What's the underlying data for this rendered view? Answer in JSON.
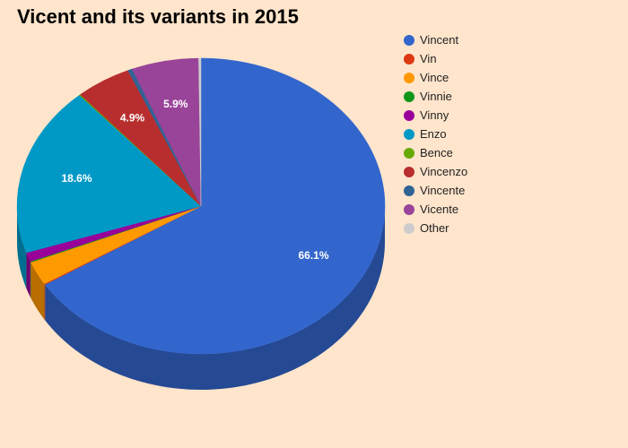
{
  "chart_data": {
    "type": "pie",
    "title": "Vicent and its variants in 2015",
    "slices": [
      {
        "label": "Vincent",
        "value": 66.1,
        "color": "#3366cc",
        "data_label": "66.1%"
      },
      {
        "label": "Vin",
        "value": 0.1,
        "color": "#dc3912",
        "data_label": ""
      },
      {
        "label": "Vince",
        "value": 2.6,
        "color": "#ff9900",
        "data_label": ""
      },
      {
        "label": "Vinnie",
        "value": 0.1,
        "color": "#109618",
        "data_label": ""
      },
      {
        "label": "Vinny",
        "value": 1.0,
        "color": "#990099",
        "data_label": ""
      },
      {
        "label": "Enzo",
        "value": 18.6,
        "color": "#0099c6",
        "data_label": "18.6%"
      },
      {
        "label": "Bence",
        "value": 0.1,
        "color": "#66aa00",
        "data_label": ""
      },
      {
        "label": "Vincenzo",
        "value": 4.9,
        "color": "#b82e2e",
        "data_label": "4.9%"
      },
      {
        "label": "Vincente",
        "value": 0.4,
        "color": "#316395",
        "data_label": ""
      },
      {
        "label": "Vicente",
        "value": 5.9,
        "color": "#994499",
        "data_label": "5.9%"
      },
      {
        "label": "Other",
        "value": 0.2,
        "color": "#cccccc",
        "data_label": ""
      }
    ],
    "legend_position": "right",
    "is_3d": true
  }
}
